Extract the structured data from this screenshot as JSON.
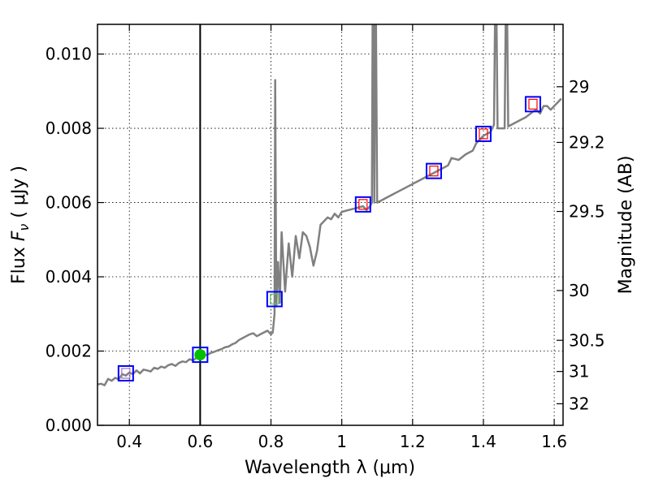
{
  "chart_data": {
    "type": "line",
    "xlabel": "Wavelength  λ (μm)",
    "ylabel": {
      "prefix": "Flux  ",
      "symbol": "F",
      "subscript": "ν",
      "unit": "  ( μJy )"
    },
    "ylabel_right": "Magnitude (AB)",
    "xlim": [
      0.31,
      1.625
    ],
    "ylim": [
      0.0,
      0.0108
    ],
    "x_ticks": [
      {
        "value": 0.4,
        "label": "0.4"
      },
      {
        "value": 0.6,
        "label": "0.6"
      },
      {
        "value": 0.8,
        "label": "0.8"
      },
      {
        "value": 1.0,
        "label": "1"
      },
      {
        "value": 1.2,
        "label": "1.2"
      },
      {
        "value": 1.4,
        "label": "1.4"
      },
      {
        "value": 1.6,
        "label": "1.6"
      }
    ],
    "y_ticks": [
      {
        "value": 0.0,
        "label": "0.000"
      },
      {
        "value": 0.002,
        "label": "0.002"
      },
      {
        "value": 0.004,
        "label": "0.004"
      },
      {
        "value": 0.006,
        "label": "0.006"
      },
      {
        "value": 0.008,
        "label": "0.008"
      },
      {
        "value": 0.01,
        "label": "0.010"
      }
    ],
    "mag_ticks": [
      {
        "flux": 0.00912,
        "label": "29"
      },
      {
        "flux": 0.00762,
        "label": "29.2"
      },
      {
        "flux": 0.00576,
        "label": "29.5"
      },
      {
        "flux": 0.00363,
        "label": "30"
      },
      {
        "flux": 0.00229,
        "label": "30.5"
      },
      {
        "flux": 0.00145,
        "label": "31"
      },
      {
        "flux": 0.00058,
        "label": "32"
      }
    ],
    "grid": true,
    "vertical_line_x": 0.6,
    "spectrum": {
      "color": "#808080",
      "points": [
        [
          0.31,
          0.0011
        ],
        [
          0.32,
          0.00112
        ],
        [
          0.33,
          0.00108
        ],
        [
          0.34,
          0.00125
        ],
        [
          0.35,
          0.0012
        ],
        [
          0.36,
          0.00128
        ],
        [
          0.37,
          0.00124
        ],
        [
          0.38,
          0.00138
        ],
        [
          0.39,
          0.00134
        ],
        [
          0.4,
          0.00142
        ],
        [
          0.41,
          0.00138
        ],
        [
          0.42,
          0.00148
        ],
        [
          0.43,
          0.0014
        ],
        [
          0.44,
          0.0015
        ],
        [
          0.45,
          0.00148
        ],
        [
          0.46,
          0.00145
        ],
        [
          0.47,
          0.00155
        ],
        [
          0.48,
          0.00152
        ],
        [
          0.49,
          0.00158
        ],
        [
          0.5,
          0.00155
        ],
        [
          0.51,
          0.00162
        ],
        [
          0.52,
          0.00165
        ],
        [
          0.53,
          0.0016
        ],
        [
          0.54,
          0.00168
        ],
        [
          0.55,
          0.00172
        ],
        [
          0.56,
          0.0017
        ],
        [
          0.57,
          0.00178
        ],
        [
          0.58,
          0.00175
        ],
        [
          0.59,
          0.00182
        ],
        [
          0.6,
          0.00185
        ],
        [
          0.61,
          0.00188
        ],
        [
          0.62,
          0.0019
        ],
        [
          0.63,
          0.00195
        ],
        [
          0.64,
          0.00198
        ],
        [
          0.65,
          0.00202
        ],
        [
          0.66,
          0.00205
        ],
        [
          0.67,
          0.0021
        ],
        [
          0.68,
          0.00212
        ],
        [
          0.69,
          0.00218
        ],
        [
          0.7,
          0.00222
        ],
        [
          0.71,
          0.0023
        ],
        [
          0.72,
          0.00235
        ],
        [
          0.73,
          0.0024
        ],
        [
          0.74,
          0.00245
        ],
        [
          0.75,
          0.00248
        ],
        [
          0.76,
          0.0024
        ],
        [
          0.77,
          0.00245
        ],
        [
          0.78,
          0.0025
        ],
        [
          0.79,
          0.00255
        ],
        [
          0.8,
          0.00245
        ],
        [
          0.805,
          0.0025
        ],
        [
          0.81,
          0.003
        ],
        [
          0.812,
          0.0093
        ],
        [
          0.815,
          0.0032
        ],
        [
          0.82,
          0.0044
        ],
        [
          0.825,
          0.0033
        ],
        [
          0.83,
          0.0052
        ],
        [
          0.84,
          0.0036
        ],
        [
          0.85,
          0.0049
        ],
        [
          0.86,
          0.004
        ],
        [
          0.87,
          0.0051
        ],
        [
          0.88,
          0.0045
        ],
        [
          0.89,
          0.0052
        ],
        [
          0.9,
          0.0051
        ],
        [
          0.91,
          0.0048
        ],
        [
          0.92,
          0.0043
        ],
        [
          0.93,
          0.0047
        ],
        [
          0.94,
          0.0054
        ],
        [
          0.95,
          0.0055
        ],
        [
          0.96,
          0.0056
        ],
        [
          0.97,
          0.00555
        ],
        [
          0.98,
          0.0057
        ],
        [
          0.99,
          0.0056
        ],
        [
          1.0,
          0.00575
        ],
        [
          1.02,
          0.0058
        ],
        [
          1.04,
          0.00585
        ],
        [
          1.06,
          0.0059
        ],
        [
          1.07,
          0.0058
        ],
        [
          1.08,
          0.0059
        ],
        [
          1.085,
          0.006
        ],
        [
          1.088,
          0.013
        ],
        [
          1.092,
          0.006
        ],
        [
          1.095,
          0.013
        ],
        [
          1.1,
          0.006
        ],
        [
          1.12,
          0.0061
        ],
        [
          1.14,
          0.0062
        ],
        [
          1.16,
          0.0063
        ],
        [
          1.18,
          0.0064
        ],
        [
          1.2,
          0.0065
        ],
        [
          1.22,
          0.0066
        ],
        [
          1.24,
          0.0067
        ],
        [
          1.26,
          0.0068
        ],
        [
          1.28,
          0.0069
        ],
        [
          1.3,
          0.007
        ],
        [
          1.31,
          0.0072
        ],
        [
          1.33,
          0.00715
        ],
        [
          1.35,
          0.0073
        ],
        [
          1.37,
          0.0074
        ],
        [
          1.38,
          0.0076
        ],
        [
          1.4,
          0.0078
        ],
        [
          1.42,
          0.0079
        ],
        [
          1.43,
          0.0081
        ],
        [
          1.435,
          0.013
        ],
        [
          1.44,
          0.008
        ],
        [
          1.45,
          0.008
        ],
        [
          1.46,
          0.008
        ],
        [
          1.465,
          0.013
        ],
        [
          1.47,
          0.00805
        ],
        [
          1.48,
          0.0081
        ],
        [
          1.5,
          0.0082
        ],
        [
          1.52,
          0.0083
        ],
        [
          1.54,
          0.00845
        ],
        [
          1.55,
          0.0085
        ],
        [
          1.56,
          0.0084
        ],
        [
          1.57,
          0.0086
        ],
        [
          1.58,
          0.0086
        ],
        [
          1.59,
          0.0085
        ],
        [
          1.6,
          0.0086
        ],
        [
          1.61,
          0.0087
        ],
        [
          1.62,
          0.0088
        ]
      ]
    },
    "photometry": [
      {
        "x": 0.39,
        "y": 0.0014,
        "inner_color": "#a070c0",
        "outer_color": "#0000ff"
      },
      {
        "x": 0.81,
        "y": 0.0034,
        "inner_color": "#60c060",
        "outer_color": "#0000ff"
      },
      {
        "x": 1.06,
        "y": 0.00595,
        "inner_color": "#ff0000",
        "outer_color": "#0000ff"
      },
      {
        "x": 1.26,
        "y": 0.00685,
        "inner_color": "#ff0000",
        "outer_color": "#0000ff"
      },
      {
        "x": 1.4,
        "y": 0.00785,
        "inner_color": "#ff0000",
        "outer_color": "#0000ff"
      },
      {
        "x": 1.54,
        "y": 0.00865,
        "inner_color": "#ff0000",
        "outer_color": "#0000ff"
      }
    ],
    "highlight_point": {
      "x": 0.6,
      "y": 0.0019,
      "fill": "#00c000",
      "outer_color": "#0000ff"
    }
  }
}
